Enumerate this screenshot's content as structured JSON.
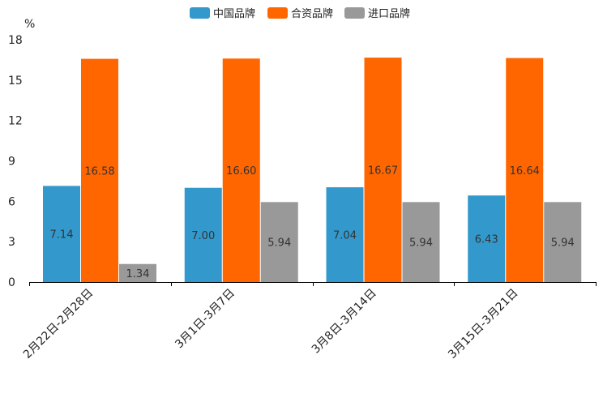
{
  "chart_data": {
    "type": "bar",
    "unit_label": "%",
    "categories": [
      "2月22日-2月28日",
      "3月1日-3月7日",
      "3月8日-3月14日",
      "3月15日-3月21日"
    ],
    "series": [
      {
        "name": "中国品牌",
        "color": "#3399cc",
        "values": [
          7.14,
          7.0,
          7.04,
          6.43
        ],
        "labels": [
          "7.14",
          "7.00",
          "7.04",
          "6.43"
        ]
      },
      {
        "name": "合资品牌",
        "color": "#ff6600",
        "values": [
          16.58,
          16.6,
          16.67,
          16.64
        ],
        "labels": [
          "16.58",
          "16.60",
          "16.67",
          "16.64"
        ]
      },
      {
        "name": "进口品牌",
        "color": "#999999",
        "values": [
          1.34,
          5.94,
          5.94,
          5.94
        ],
        "labels": [
          "1.34",
          "5.94",
          "5.94",
          "5.94"
        ]
      }
    ],
    "ylim": [
      0,
      18
    ],
    "yticks": [
      0,
      3,
      6,
      9,
      12,
      15,
      18
    ],
    "legend_position": "top-center",
    "grid": false
  }
}
